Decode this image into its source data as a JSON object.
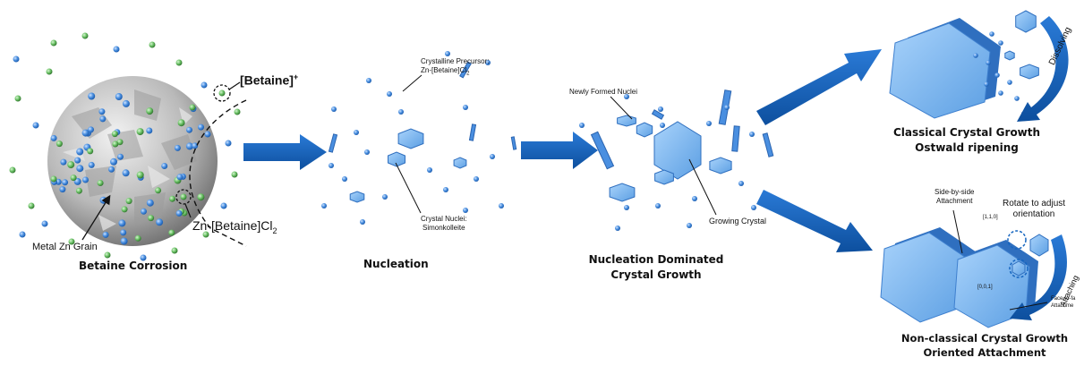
{
  "colors": {
    "arrow": "#1565c0",
    "crystal_light": "#8fc3f2",
    "crystal_mid": "#5fa2e6",
    "crystal_dark": "#2f6fbf",
    "ion_green": "#6cc267",
    "ion_blue": "#4a8fe0",
    "zn_grain": "#b9b9b9"
  },
  "stage1": {
    "betaine_ion_label": "[Betaine]",
    "betaine_ion_sup": "+",
    "complex_label_main": "Zn-[Betaine]Cl",
    "complex_label_sub": "2",
    "grain_label": "Metal Zn Grain",
    "title": "Betaine Corrosion"
  },
  "stage2": {
    "precursor_label_1": "Crystalline Precursor:",
    "precursor_label_2": "Zn-[Betaine]Cl",
    "precursor_label_sub": "2",
    "nuclei_label_1": "Crystal Nuclei:",
    "nuclei_label_2": "Simonkolleite",
    "title": "Nucleation"
  },
  "stage3": {
    "new_nuclei_label": "Newly Formed Nuclei",
    "growing_label": "Growing Crystal",
    "title_1": "Nucleation Dominated",
    "title_2": "Crystal Growth"
  },
  "stage4a": {
    "dissolving_label": "Dissolving",
    "title_1": "Classical Crystal Growth",
    "title_2": "Ostwald ripening"
  },
  "stage4b": {
    "side_label_1": "Side-by-side",
    "side_label_2": "Attachment",
    "miller_top": "[1,1,0]",
    "miller_face": "[0,0,1]",
    "rotate_label_1": "Rotate to adjust",
    "rotate_label_2": "orientation",
    "attaching_label": "Attaching",
    "face_label_1": "Face-to-fa",
    "face_label_2": "Attachme",
    "title_1": "Non-classical Crystal Growth",
    "title_2": "Oriented Attachment"
  }
}
